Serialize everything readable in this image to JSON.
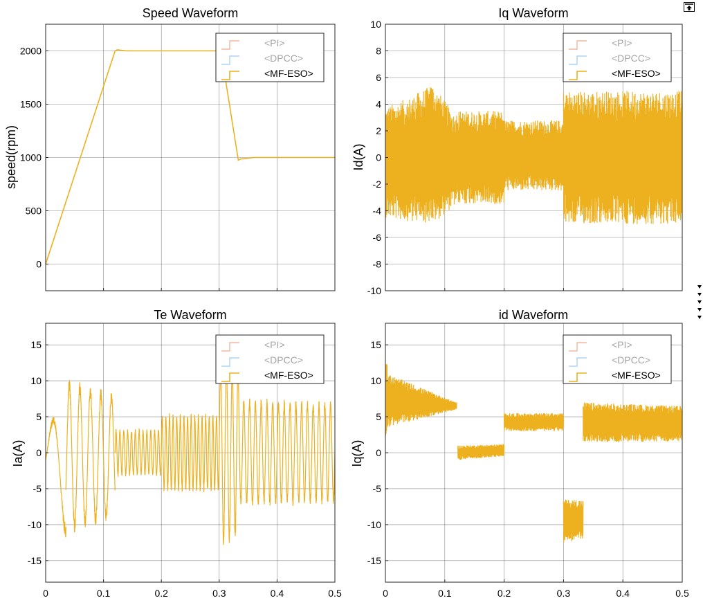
{
  "colors": {
    "pi": "#f2a98c",
    "dpcc": "#9ccbf0",
    "mfeso": "#edb120",
    "grid": "#262626",
    "legend_muted_text": "#a6a6a6"
  },
  "chart_data": [
    {
      "id": "speed",
      "type": "line",
      "title": "Speed Waveform",
      "xlabel": "",
      "ylabel": "speed(rpm)",
      "xlim": [
        0,
        0.5
      ],
      "ylim": [
        -250,
        2250
      ],
      "xticks": [
        0,
        0.1,
        0.2,
        0.3,
        0.4,
        0.5
      ],
      "yticks": [
        0,
        500,
        1000,
        1500,
        2000
      ],
      "show_xtick_labels": false,
      "grid": true,
      "legend": [
        "<PI>",
        "<DPCC>",
        "<MF-ESO>"
      ],
      "legend_position": "top-right",
      "series": [
        {
          "name": "<MF-ESO>",
          "x": [
            0,
            0.12,
            0.124,
            0.14,
            0.16,
            0.2,
            0.3,
            0.303,
            0.333,
            0.337,
            0.36,
            0.5
          ],
          "y": [
            0,
            2000,
            2010,
            2000,
            2000,
            2000,
            2000,
            2000,
            975,
            985,
            1000,
            1000
          ]
        }
      ]
    },
    {
      "id": "iq",
      "type": "line",
      "title": "Iq Waveform",
      "xlabel": "",
      "ylabel": "Id(A)",
      "xlim": [
        0,
        0.5
      ],
      "ylim": [
        -10,
        10
      ],
      "xticks": [
        0,
        0.1,
        0.2,
        0.3,
        0.4,
        0.5
      ],
      "yticks": [
        -10,
        -8,
        -6,
        -4,
        -2,
        0,
        2,
        4,
        6,
        8,
        10
      ],
      "show_xtick_labels": false,
      "grid": true,
      "legend": [
        "<PI>",
        "<DPCC>",
        "<MF-ESO>"
      ],
      "legend_position": "top-right",
      "series": [
        {
          "name": "<MF-ESO>",
          "noise_band": {
            "segments": [
              {
                "x0": 0,
                "x1": 0.04,
                "lower": [
                  -4.5,
                  -4.8
                ],
                "upper": [
                  3.8,
                  4.5
                ]
              },
              {
                "x0": 0.04,
                "x1": 0.08,
                "lower": [
                  -4.8,
                  -5.0
                ],
                "upper": [
                  4.5,
                  5.5
                ]
              },
              {
                "x0": 0.08,
                "x1": 0.12,
                "lower": [
                  -5.0,
                  -3.5
                ],
                "upper": [
                  5.5,
                  3.0
                ]
              },
              {
                "x0": 0.12,
                "x1": 0.2,
                "lower": [
                  -3.5,
                  -3.5
                ],
                "upper": [
                  3.5,
                  3.5
                ]
              },
              {
                "x0": 0.2,
                "x1": 0.3,
                "lower": [
                  -2.5,
                  -2.5
                ],
                "upper": [
                  2.8,
                  2.8
                ]
              },
              {
                "x0": 0.3,
                "x1": 0.5,
                "lower": [
                  -5.0,
                  -5.0
                ],
                "upper": [
                  5.0,
                  5.0
                ]
              }
            ],
            "spikes": [
              5.8,
              -5.6
            ]
          }
        }
      ]
    },
    {
      "id": "te",
      "type": "line",
      "title": "Te Waveform",
      "xlabel": "",
      "ylabel": "Ia(A)",
      "xlim": [
        0,
        0.5
      ],
      "ylim": [
        -18,
        18
      ],
      "xticks": [
        0,
        0.1,
        0.2,
        0.3,
        0.4,
        0.5
      ],
      "yticks": [
        -15,
        -10,
        -5,
        0,
        5,
        10,
        15
      ],
      "show_xtick_labels": true,
      "grid": true,
      "legend": [
        "<PI>",
        "<DPCC>",
        "<MF-ESO>"
      ],
      "legend_position": "top-right",
      "series": [
        {
          "name": "<MF-ESO>",
          "sinusoid_segments": [
            {
              "x0": 0,
              "x1": 0.035,
              "freq": 22,
              "amp": [
                3,
                10
              ],
              "offset": -1
            },
            {
              "x0": 0.035,
              "x1": 0.12,
              "freq": 55,
              "amp": [
                10,
                8
              ],
              "offset": -0.5
            },
            {
              "x0": 0.12,
              "x1": 0.2,
              "freq": 150,
              "amp": [
                3,
                3
              ],
              "offset": 0
            },
            {
              "x0": 0.2,
              "x1": 0.3,
              "freq": 160,
              "amp": [
                5,
                5
              ],
              "offset": 0
            },
            {
              "x0": 0.3,
              "x1": 0.335,
              "freq": 100,
              "amp": [
                12,
                11
              ],
              "offset": 0
            },
            {
              "x0": 0.335,
              "x1": 0.5,
              "freq": 100,
              "amp": [
                7,
                6.5
              ],
              "offset": 0
            }
          ]
        }
      ]
    },
    {
      "id": "id",
      "type": "line",
      "title": "id Waveform",
      "xlabel": "",
      "ylabel": "Iq(A)",
      "xlim": [
        0,
        0.5
      ],
      "ylim": [
        -18,
        18
      ],
      "xticks": [
        0,
        0.1,
        0.2,
        0.3,
        0.4,
        0.5
      ],
      "yticks": [
        -15,
        -10,
        -5,
        0,
        5,
        10,
        15
      ],
      "show_xtick_labels": true,
      "grid": true,
      "legend": [
        "<PI>",
        "<DPCC>",
        "<MF-ESO>"
      ],
      "legend_position": "top-right",
      "series": [
        {
          "name": "<MF-ESO>",
          "noise_band": {
            "segments": [
              {
                "x0": 0,
                "x1": 0.003,
                "lower": [
                  1.5,
                  3.5
                ],
                "upper": [
                  12.5,
                  12.5
                ]
              },
              {
                "x0": 0.003,
                "x1": 0.12,
                "lower": [
                  3.5,
                  6.0
                ],
                "upper": [
                  11.0,
                  7.0
                ]
              },
              {
                "x0": 0.122,
                "x1": 0.2,
                "lower": [
                  -1.0,
                  -0.5
                ],
                "upper": [
                  1.0,
                  1.2
                ]
              },
              {
                "x0": 0.2,
                "x1": 0.3,
                "lower": [
                  3.0,
                  3.0
                ],
                "upper": [
                  5.5,
                  5.5
                ]
              },
              {
                "x0": 0.3,
                "x1": 0.333,
                "lower": [
                  -12.5,
                  -12.0
                ],
                "upper": [
                  -6.5,
                  -6.5
                ]
              },
              {
                "x0": 0.333,
                "x1": 0.5,
                "lower": [
                  1.5,
                  1.5
                ],
                "upper": [
                  7.0,
                  6.5
                ]
              }
            ],
            "spikes": [
              12.5,
              -12.5
            ]
          }
        }
      ]
    }
  ]
}
